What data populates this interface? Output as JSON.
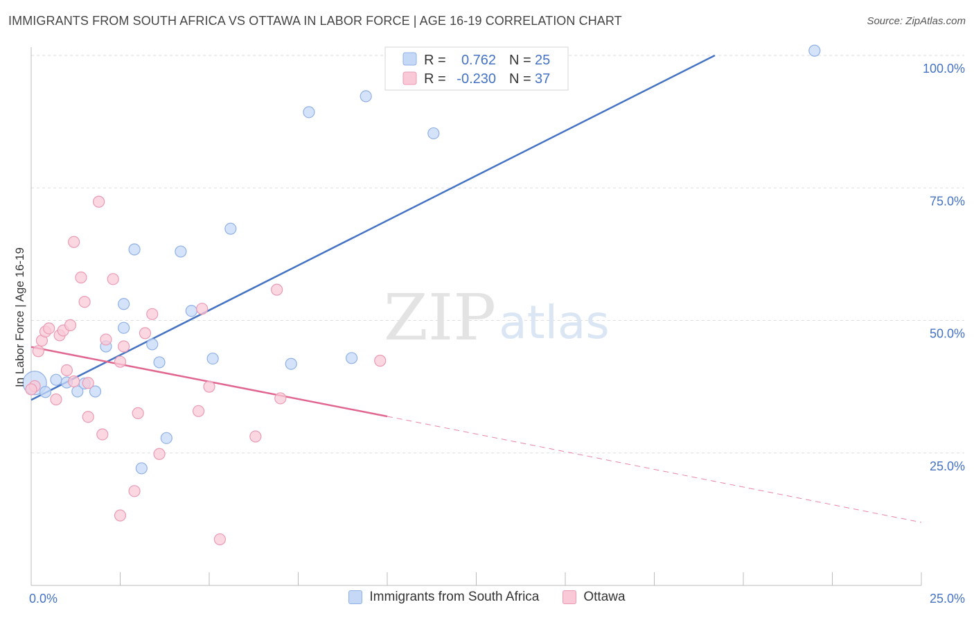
{
  "header": {
    "title": "IMMIGRANTS FROM SOUTH AFRICA VS OTTAWA IN LABOR FORCE | AGE 16-19 CORRELATION CHART",
    "source": "Source: ZipAtlas.com"
  },
  "watermark": {
    "zip": "ZIP",
    "atlas": "atlas"
  },
  "stats": {
    "r_label": "R =",
    "n_label": "N =",
    "rows": [
      {
        "r": "0.762",
        "n": "25",
        "color": "#4472c4",
        "fill": "#c5d9f7",
        "stroke": "#8fb0e6"
      },
      {
        "r": "-0.230",
        "n": "37",
        "color": "#4472c4",
        "fill": "#f9c9d7",
        "stroke": "#eb9ab3"
      }
    ]
  },
  "chart_data": {
    "type": "scatter",
    "xlabel": "",
    "ylabel": "In Labor Force | Age 16-19",
    "xlim": [
      0,
      25
    ],
    "ylim": [
      0,
      100
    ],
    "x_tick_labels": [
      {
        "value": 0,
        "label": "0.0%"
      },
      {
        "value": 25,
        "label": "25.0%"
      }
    ],
    "y_tick_labels": [
      {
        "value": 25,
        "label": "25.0%"
      },
      {
        "value": 50,
        "label": "50.0%"
      },
      {
        "value": 75,
        "label": "75.0%"
      },
      {
        "value": 100,
        "label": "100.0%"
      }
    ],
    "grid": true,
    "legend_position": "bottom",
    "series": [
      {
        "name": "Immigrants from South Africa",
        "color": "#4472c4",
        "fill": "#c5d9f7",
        "stroke": "#8fb0e6",
        "points": [
          [
            0.1,
            38.2
          ],
          [
            0.4,
            36.5
          ],
          [
            0.7,
            38.8
          ],
          [
            1.0,
            38.3
          ],
          [
            1.3,
            36.6
          ],
          [
            1.5,
            38.1
          ],
          [
            1.8,
            36.6
          ],
          [
            2.1,
            45.1
          ],
          [
            2.6,
            53.1
          ],
          [
            2.6,
            48.6
          ],
          [
            2.9,
            63.4
          ],
          [
            3.1,
            22.1
          ],
          [
            3.4,
            45.5
          ],
          [
            3.6,
            42.1
          ],
          [
            3.8,
            27.8
          ],
          [
            4.2,
            63.0
          ],
          [
            4.5,
            51.8
          ],
          [
            5.1,
            42.8
          ],
          [
            5.6,
            67.3
          ],
          [
            7.3,
            41.8
          ],
          [
            7.8,
            89.3
          ],
          [
            9.0,
            42.9
          ],
          [
            9.4,
            92.3
          ],
          [
            11.3,
            85.3
          ],
          [
            22.0,
            100.9
          ]
        ],
        "regression": {
          "x": [
            0.0,
            19.2
          ],
          "y": [
            35.0,
            100.0
          ],
          "style": "solid"
        }
      },
      {
        "name": "Ottawa",
        "color": "#e0668e",
        "fill": "#f9c9d7",
        "stroke": "#eb9ab3",
        "points": [
          [
            0.1,
            37.6
          ],
          [
            0.2,
            44.2
          ],
          [
            0.3,
            46.2
          ],
          [
            0.4,
            47.9
          ],
          [
            0.5,
            48.5
          ],
          [
            0.7,
            35.1
          ],
          [
            0.8,
            47.2
          ],
          [
            0.9,
            48.1
          ],
          [
            1.0,
            40.6
          ],
          [
            1.1,
            49.1
          ],
          [
            1.2,
            38.5
          ],
          [
            1.2,
            64.8
          ],
          [
            1.4,
            58.1
          ],
          [
            1.5,
            53.5
          ],
          [
            1.6,
            38.2
          ],
          [
            1.6,
            31.8
          ],
          [
            1.9,
            72.4
          ],
          [
            2.0,
            28.5
          ],
          [
            2.1,
            46.4
          ],
          [
            2.3,
            57.8
          ],
          [
            2.5,
            13.2
          ],
          [
            2.5,
            42.2
          ],
          [
            2.6,
            45.1
          ],
          [
            2.9,
            17.8
          ],
          [
            3.0,
            32.5
          ],
          [
            3.2,
            47.6
          ],
          [
            3.4,
            51.2
          ],
          [
            3.6,
            24.8
          ],
          [
            4.7,
            32.9
          ],
          [
            4.8,
            52.2
          ],
          [
            5.0,
            37.5
          ],
          [
            5.3,
            8.7
          ],
          [
            6.3,
            28.1
          ],
          [
            6.9,
            55.8
          ],
          [
            7.0,
            35.3
          ],
          [
            9.8,
            42.4
          ],
          [
            0.0,
            37.0
          ]
        ],
        "regression": {
          "x": [
            0.0,
            10.0
          ],
          "y": [
            45.0,
            31.9
          ],
          "style": "solid"
        },
        "regression_extension": {
          "x": [
            10.0,
            25.0
          ],
          "y": [
            31.9,
            11.9
          ],
          "style": "dashed"
        }
      }
    ]
  }
}
